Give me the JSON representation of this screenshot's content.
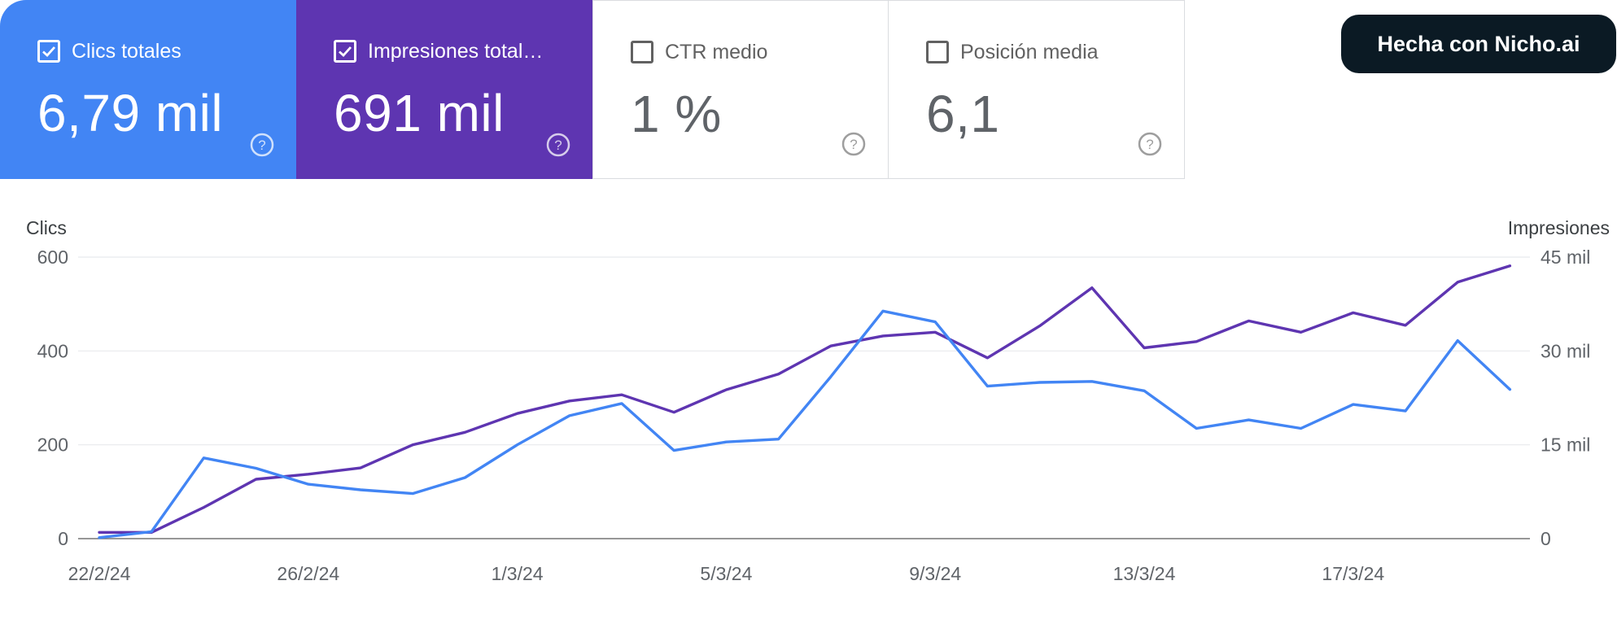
{
  "cards": [
    {
      "id": "clicks",
      "label": "Clics totales",
      "value": "6,79 mil",
      "checked": true
    },
    {
      "id": "impressions",
      "label": "Impresiones total…",
      "value": "691 mil",
      "checked": true
    },
    {
      "id": "ctr",
      "label": "CTR medio",
      "value": "1 %",
      "checked": false
    },
    {
      "id": "position",
      "label": "Posición media",
      "value": "6,1",
      "checked": false
    }
  ],
  "badge": {
    "label": "Hecha con Nicho.ai"
  },
  "colors": {
    "clicks": "#4285f4",
    "impressions": "#5e35b1"
  },
  "chart_data": {
    "type": "line",
    "x": [
      "22/2/24",
      "23/2/24",
      "24/2/24",
      "25/2/24",
      "26/2/24",
      "27/2/24",
      "28/2/24",
      "29/2/24",
      "1/3/24",
      "2/3/24",
      "3/3/24",
      "4/3/24",
      "5/3/24",
      "6/3/24",
      "7/3/24",
      "8/3/24",
      "9/3/24",
      "10/3/24",
      "11/3/24",
      "12/3/24",
      "13/3/24",
      "14/3/24",
      "15/3/24",
      "16/3/24",
      "17/3/24",
      "18/3/24",
      "19/3/24",
      "20/3/24"
    ],
    "x_tick_labels": [
      "22/2/24",
      "26/2/24",
      "1/3/24",
      "5/3/24",
      "9/3/24",
      "13/3/24",
      "17/3/24"
    ],
    "y_left": {
      "label": "Clics",
      "range": [
        0,
        600
      ],
      "ticks": [
        "0",
        "200",
        "400",
        "600"
      ]
    },
    "y_right": {
      "label": "Impresiones",
      "range": [
        0,
        45000
      ],
      "ticks": [
        "0",
        "15 mil",
        "30 mil",
        "45 mil"
      ]
    },
    "grid": true,
    "series": [
      {
        "name": "Clics",
        "axis": "left",
        "color": "#4285f4",
        "values": [
          2,
          15,
          172,
          150,
          116,
          104,
          96,
          130,
          200,
          262,
          288,
          188,
          206,
          212,
          345,
          485,
          462,
          325,
          333,
          335,
          315,
          235,
          253,
          235,
          286,
          272,
          422,
          318
        ]
      },
      {
        "name": "Impresiones",
        "axis": "right",
        "color": "#5e35b1",
        "values": [
          1000,
          1000,
          5000,
          9500,
          10300,
          11300,
          15000,
          17000,
          20000,
          22000,
          23000,
          20200,
          23800,
          26300,
          30800,
          32400,
          33000,
          28900,
          34000,
          40100,
          30500,
          31500,
          34800,
          33000,
          36100,
          34100,
          41000,
          43600
        ]
      }
    ]
  }
}
